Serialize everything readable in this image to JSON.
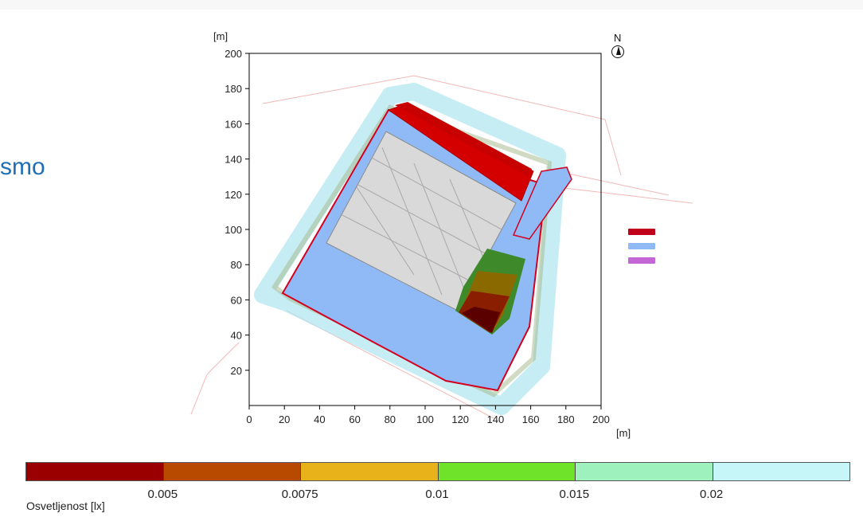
{
  "slide": {
    "left_text_fragment": "smo"
  },
  "chart_data": {
    "type": "heatmap",
    "x": {
      "label": "[m]",
      "ticks": [
        0,
        20,
        40,
        60,
        80,
        100,
        120,
        140,
        160,
        180,
        200
      ],
      "range": [
        0,
        200
      ]
    },
    "y": {
      "label": "[m]",
      "ticks": [
        20,
        40,
        60,
        80,
        100,
        120,
        140,
        160,
        180,
        200
      ],
      "range": [
        0,
        200
      ]
    },
    "north_label": "N",
    "legend_colors": [
      "#c0001a",
      "#8fbaf5",
      "#c566d6"
    ],
    "colorbar": {
      "label": "Osvetljenost [lx]",
      "colors": [
        "#9b0000",
        "#b84a00",
        "#e8b21a",
        "#6fe22a",
        "#9ef0bd",
        "#c6f6f7"
      ],
      "tick_values": [
        "0.005",
        "0.0075",
        "0.01",
        "0.015",
        "0.02"
      ]
    }
  }
}
